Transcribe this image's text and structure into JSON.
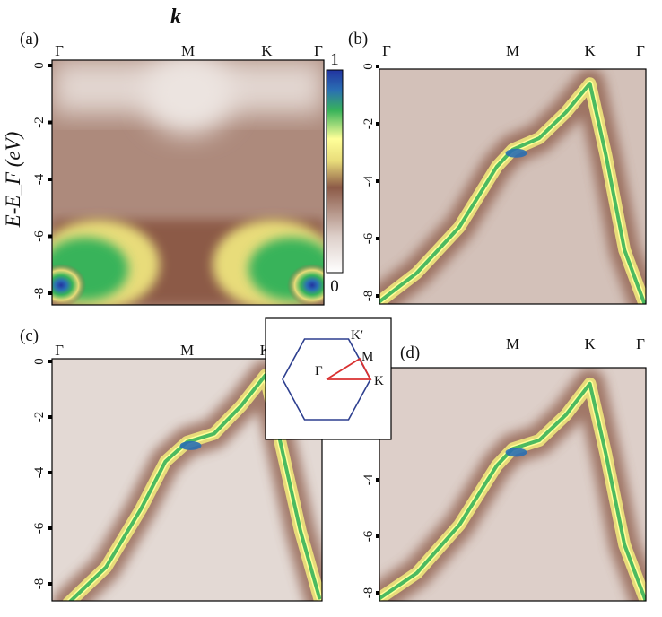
{
  "chart_data": {
    "type": "heatmap",
    "title": "k",
    "ylabel": "E-E_F (eV)",
    "ylim": [
      -8.5,
      0.5
    ],
    "yticks": [
      "0",
      "-2",
      "-4",
      "-6",
      "-8"
    ],
    "colorbar": {
      "min": "0",
      "max": "1"
    },
    "colormap": [
      "#ffffff",
      "#ddcfc9",
      "#8c5a47",
      "#e8dc7a",
      "#ffff99",
      "#38b35a",
      "#2a6fb3",
      "#2234a0"
    ],
    "panels": [
      {
        "label": "(a)",
        "kpoints": [
          "Γ",
          "M",
          "K",
          "Γ"
        ],
        "kpos": [
          0,
          0.5,
          0.79,
          1
        ],
        "description_points": {
          "flat_band_energy": -7.5,
          "hot_spots_k": [
            0,
            1
          ],
          "hot_spot_energy": -8.0
        }
      },
      {
        "label": "(b)",
        "kpoints": [
          "Γ",
          "M",
          "K",
          "Γ"
        ],
        "kpos": [
          0,
          0.5,
          0.79,
          1
        ],
        "band": {
          "k": [
            0.0,
            0.14,
            0.3,
            0.44,
            0.5,
            0.6,
            0.7,
            0.79,
            0.85,
            0.92,
            1.0
          ],
          "E": [
            -8.2,
            -7.2,
            -5.6,
            -3.5,
            -2.9,
            -2.5,
            -1.6,
            -0.6,
            -3.1,
            -6.4,
            -8.4
          ]
        }
      },
      {
        "label": "(c)",
        "kpoints": [
          "Γ",
          "M",
          "K"
        ],
        "kpos": [
          0,
          0.5,
          0.79
        ],
        "band": {
          "k": [
            0.06,
            0.2,
            0.33,
            0.42,
            0.5,
            0.6,
            0.7,
            0.79,
            0.85,
            0.92,
            0.99
          ],
          "E": [
            -8.7,
            -7.4,
            -5.3,
            -3.6,
            -2.9,
            -2.6,
            -1.6,
            -0.5,
            -3.1,
            -6.1,
            -8.5
          ]
        }
      },
      {
        "label": "(d)",
        "kpoints": [
          "M",
          "K",
          "Γ"
        ],
        "kpos": [
          0.5,
          0.79,
          1
        ],
        "band": {
          "k": [
            0.0,
            0.14,
            0.3,
            0.44,
            0.5,
            0.6,
            0.7,
            0.79,
            0.85,
            0.92,
            1.0
          ],
          "E": [
            -8.2,
            -7.3,
            -5.6,
            -3.5,
            -2.9,
            -2.6,
            -1.7,
            -0.6,
            -3.1,
            -6.3,
            -8.3
          ]
        }
      }
    ],
    "inset": {
      "type": "diagram",
      "labels": [
        "Γ",
        "M",
        "K",
        "K′"
      ],
      "path": [
        "Γ",
        "M",
        "K",
        "Γ"
      ],
      "hexagon_color": "#2d3f8f",
      "path_color": "#d93030"
    }
  }
}
